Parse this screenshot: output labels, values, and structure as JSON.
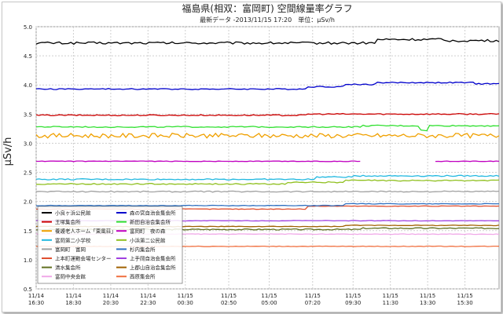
{
  "chart_data": {
    "type": "line",
    "title": "福島県(相双：富岡町) 空間線量率グラフ",
    "subtitle": "最新データ -2013/11/15 17:20　単位：μSv/h",
    "ylabel": "μSv/h",
    "xlabel": "",
    "ylim": [
      0.5,
      5.0
    ],
    "yticks": [
      {
        "v": 5.0,
        "label": "5.0"
      },
      {
        "v": 4.5,
        "label": "4.5"
      },
      {
        "v": 4.0,
        "label": "4.0"
      },
      {
        "v": 3.5,
        "label": "3.5"
      },
      {
        "v": 3.0,
        "label": "3.0"
      },
      {
        "v": 2.5,
        "label": "2.5"
      },
      {
        "v": 2.0,
        "label": "2.0"
      },
      {
        "v": 1.5,
        "label": "1.5"
      },
      {
        "v": 1.0,
        "label": "1.0"
      },
      {
        "v": 0.5,
        "label": "0.5"
      }
    ],
    "xrange_hours": [
      16.5,
      41.33
    ],
    "xticks": [
      {
        "t": 16.5,
        "date": "11/14",
        "time": "16:30"
      },
      {
        "t": 18.5,
        "date": "11/14",
        "time": "18:30"
      },
      {
        "t": 20.5,
        "date": "11/14",
        "time": "20:30"
      },
      {
        "t": 22.5,
        "date": "11/14",
        "time": "22:30"
      },
      {
        "t": 24.5,
        "date": "11/15",
        "time": "00:30"
      },
      {
        "t": 26.83,
        "date": "11/15",
        "time": "02:50"
      },
      {
        "t": 29.0,
        "date": "11/15",
        "time": "05:00"
      },
      {
        "t": 31.33,
        "date": "11/15",
        "time": "07:20"
      },
      {
        "t": 33.5,
        "date": "11/15",
        "time": "09:30"
      },
      {
        "t": 35.5,
        "date": "11/15",
        "time": "11:30"
      },
      {
        "t": 37.5,
        "date": "11/15",
        "time": "13:30"
      },
      {
        "t": 39.5,
        "date": "11/15",
        "time": "15:30"
      }
    ],
    "grid": true,
    "legend_position": "bottom-left",
    "series": [
      {
        "name": "小良ヶ浜公民館",
        "color": "#000000",
        "base": 4.72,
        "noise": 0.02,
        "steps": [
          [
            34.8,
            0.06
          ],
          [
            38.3,
            -0.02
          ]
        ]
      },
      {
        "name": "王塚集会所",
        "color": "#cc0000",
        "base": 3.48,
        "noise": 0.01,
        "steps": [
          [
            31.0,
            0.02
          ]
        ]
      },
      {
        "name": "養護老人ホーム「東風荘」",
        "color": "#f0a000",
        "base": 3.13,
        "noise": 0.04,
        "steps": []
      },
      {
        "name": "富岡第二小学校",
        "color": "#20b8e0",
        "base": 2.38,
        "noise": 0.01,
        "steps": [
          [
            31.5,
            0.04
          ],
          [
            33.5,
            0.02
          ]
        ]
      },
      {
        "name": "富岡町　富岡",
        "color": "#a0a0a0",
        "base": 2.17,
        "noise": 0.01,
        "steps": []
      },
      {
        "name": "上本町運動会場センター",
        "color": "#e05030",
        "base": 1.87,
        "noise": 0.005,
        "steps": [
          [
            31.0,
            0.05
          ]
        ]
      },
      {
        "name": "清水集会所",
        "color": "#607020",
        "base": 1.52,
        "noise": 0.01,
        "steps": [
          [
            34.0,
            0.02
          ]
        ]
      },
      {
        "name": "富岡中央会館",
        "color": "#f0a8e8",
        "base": 1.44,
        "noise": 0.005,
        "steps": []
      },
      {
        "name": "森の宮自治会集会所",
        "color": "#0000cc",
        "base": 3.93,
        "noise": 0.01,
        "steps": [
          [
            31.0,
            0.04
          ],
          [
            33.0,
            0.04
          ],
          [
            34.8,
            0.03
          ],
          [
            40.0,
            -0.02
          ]
        ]
      },
      {
        "name": "新田自治会集会所",
        "color": "#30e030",
        "base": 3.28,
        "noise": 0.01,
        "steps": [
          [
            34.0,
            0.02
          ]
        ],
        "dip": [
          37.3,
          0.08
        ]
      },
      {
        "name": "富岡町　夜の森",
        "color": "#c000c0",
        "base": 2.69,
        "noise": 0.005,
        "steps": [],
        "gap": [
          34.0,
          37.8
        ]
      },
      {
        "name": "小浜第二公民館",
        "color": "#90c020",
        "base": 2.3,
        "noise": 0.01,
        "steps": [
          [
            30.0,
            0.03
          ],
          [
            33.0,
            0.03
          ]
        ]
      },
      {
        "name": "杉内集会所",
        "color": "#3070c0",
        "base": 1.93,
        "noise": 0.005,
        "steps": [
          [
            33.0,
            0.03
          ]
        ]
      },
      {
        "name": "上手岡自治会集会所",
        "color": "#a040e0",
        "base": 1.67,
        "noise": 0.005,
        "steps": []
      },
      {
        "name": "上郡山自治会集会所",
        "color": "#a06000",
        "base": 1.57,
        "noise": 0.005,
        "steps": [
          [
            33.0,
            0.02
          ]
        ]
      },
      {
        "name": "西原集会所",
        "color": "#f07040",
        "base": 1.23,
        "noise": 0.005,
        "steps": []
      }
    ]
  }
}
